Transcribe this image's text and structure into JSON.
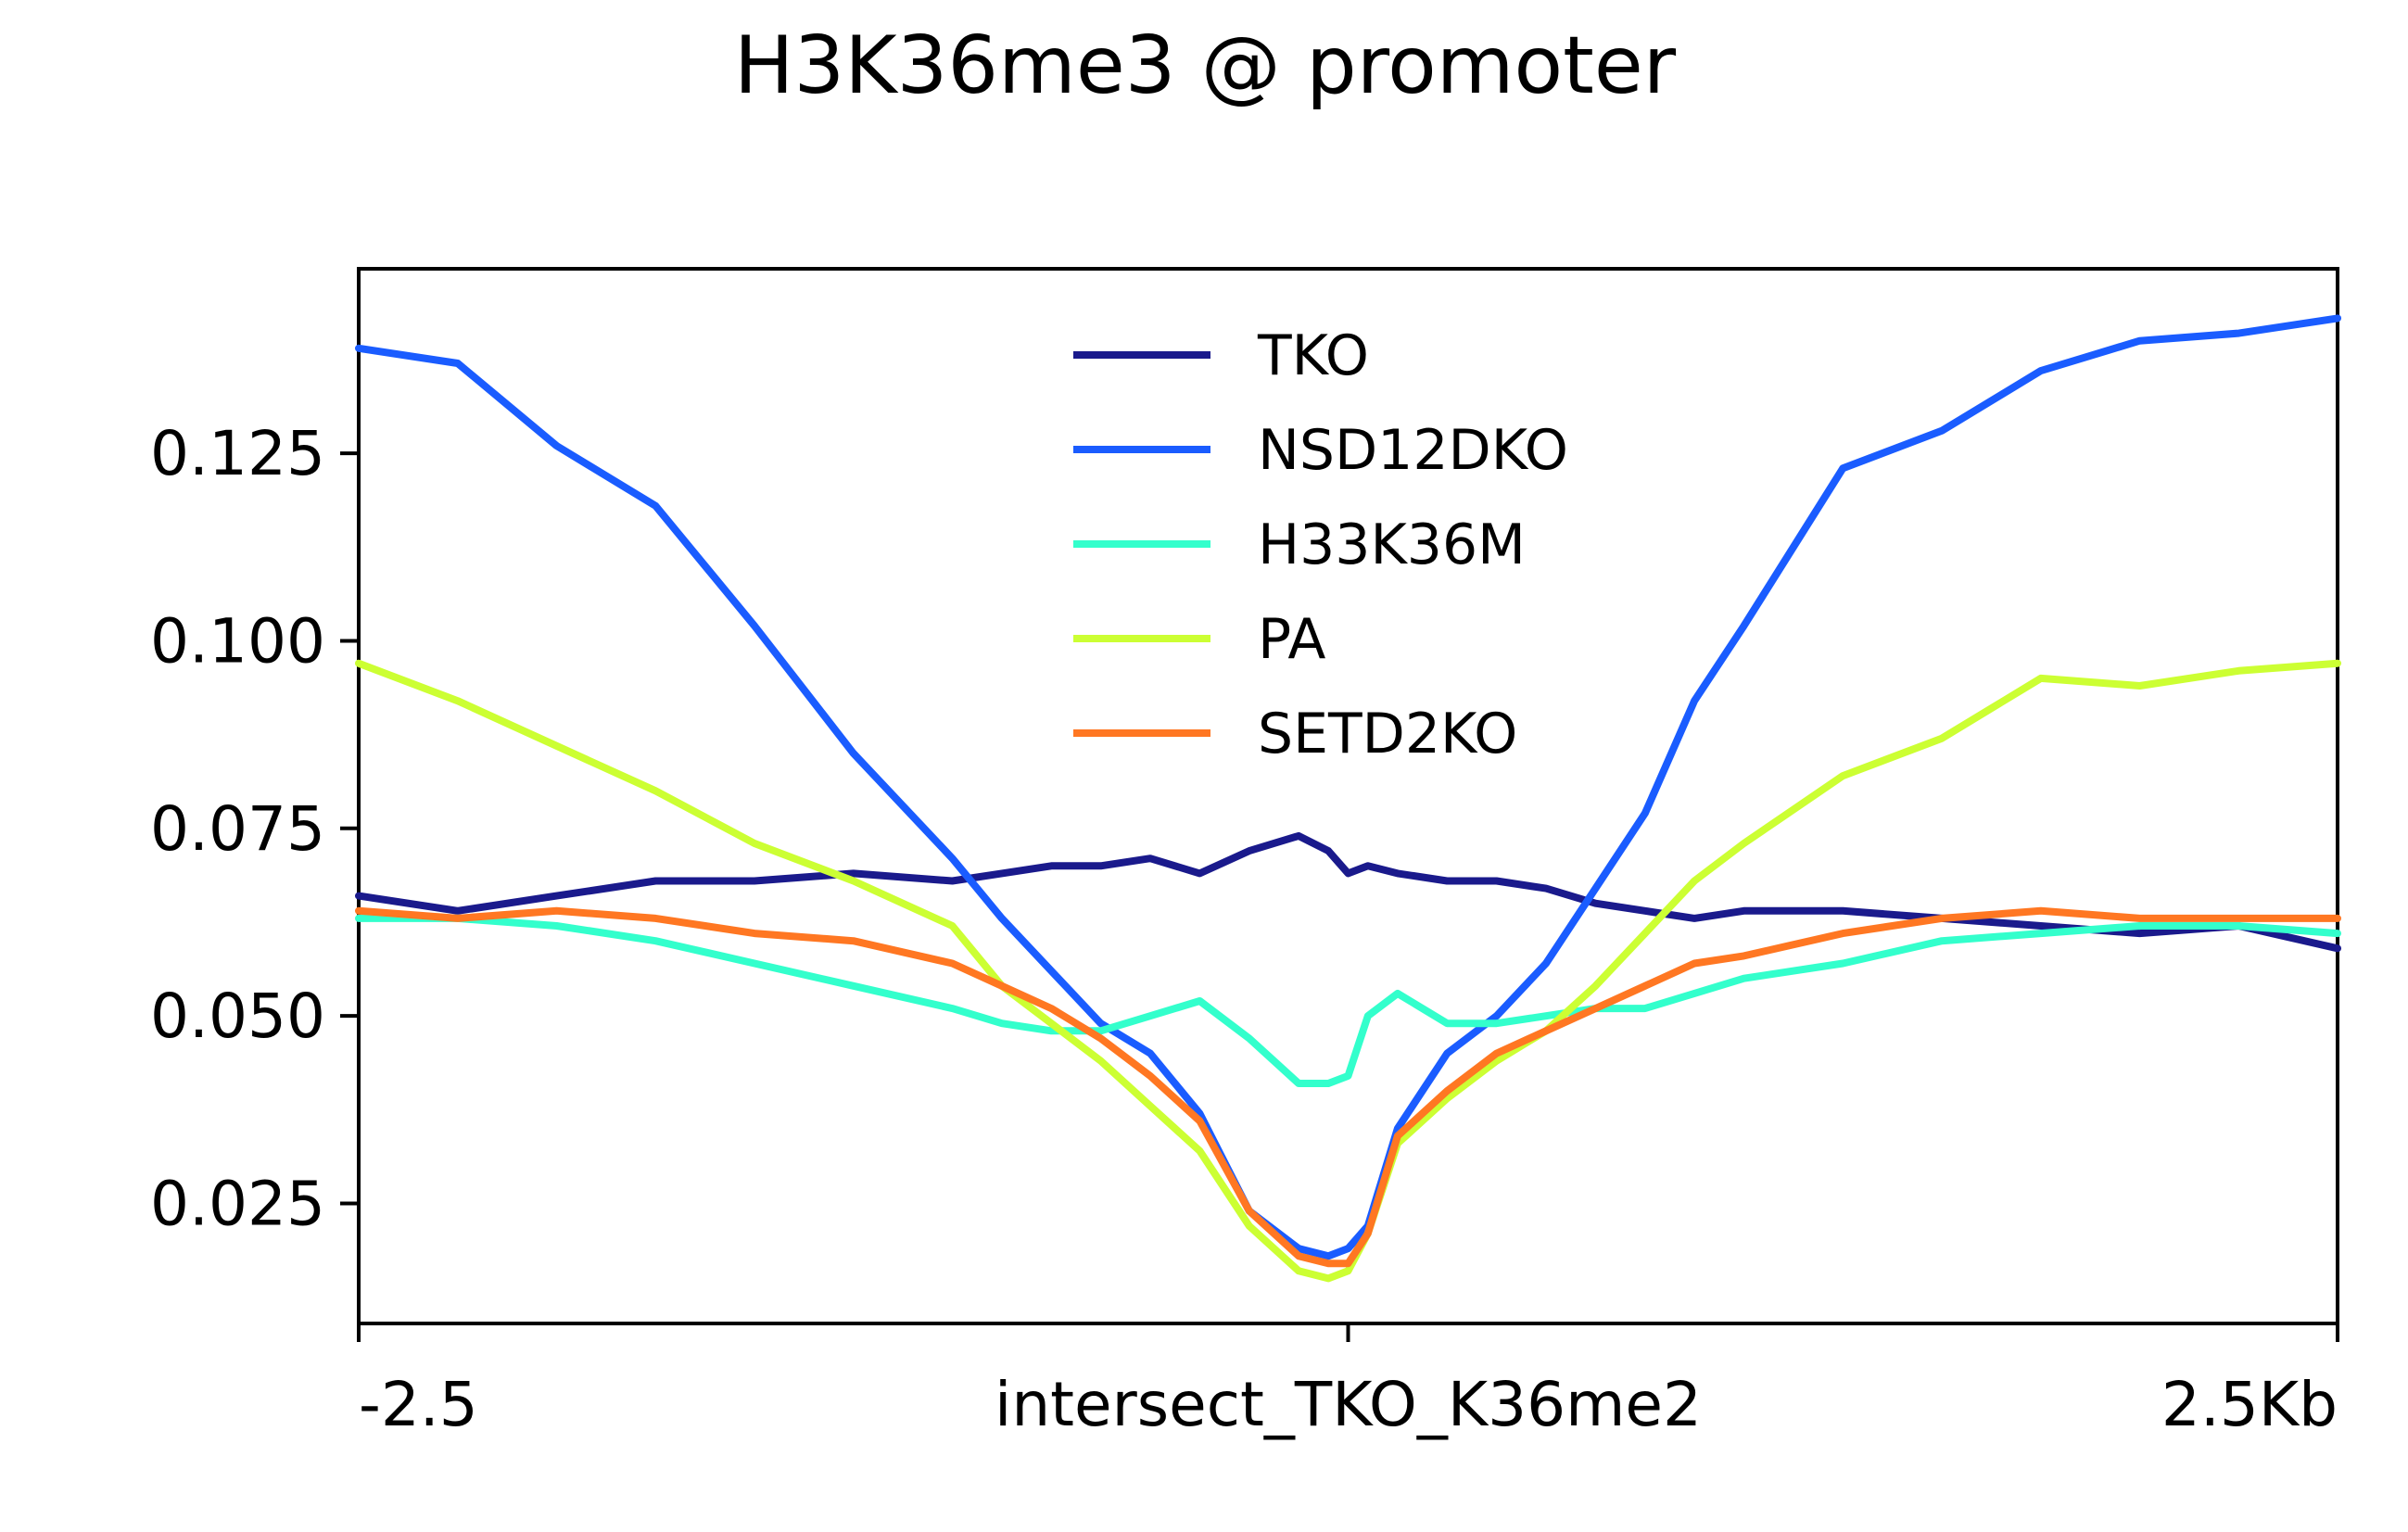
{
  "chart_data": {
    "type": "line",
    "title": "H3K36me3 @ promoter",
    "xlabel": "",
    "ylabel": "",
    "x_ticks": [
      {
        "x": -2.5,
        "label": "-2.5"
      },
      {
        "x": 0,
        "label": "intersect_TKO_K36me2"
      },
      {
        "x": 2.5,
        "label": "2.5Kb"
      }
    ],
    "y_ticks": [
      {
        "y": 0.025,
        "label": "0.025"
      },
      {
        "y": 0.05,
        "label": "0.050"
      },
      {
        "y": 0.075,
        "label": "0.075"
      },
      {
        "y": 0.1,
        "label": "0.100"
      },
      {
        "y": 0.125,
        "label": "0.125"
      }
    ],
    "xlim": [
      -2.5,
      2.5
    ],
    "ylim": [
      0.009,
      0.1496
    ],
    "grid": false,
    "legend_position": "top-center",
    "x": [
      -2.5,
      -2.25,
      -2.0,
      -1.75,
      -1.5,
      -1.25,
      -1.0,
      -0.875,
      -0.75,
      -0.625,
      -0.5,
      -0.375,
      -0.25,
      -0.125,
      -0.05,
      0.0,
      0.05,
      0.125,
      0.25,
      0.375,
      0.5,
      0.625,
      0.75,
      0.875,
      1.0,
      1.25,
      1.5,
      1.75,
      2.0,
      2.25,
      2.5
    ],
    "series": [
      {
        "name": "TKO",
        "color": "#1a1a8c",
        "values": [
          0.066,
          0.064,
          0.066,
          0.068,
          0.068,
          0.069,
          0.068,
          0.069,
          0.07,
          0.07,
          0.071,
          0.069,
          0.072,
          0.074,
          0.072,
          0.069,
          0.07,
          0.069,
          0.068,
          0.068,
          0.067,
          0.065,
          0.064,
          0.063,
          0.064,
          0.064,
          0.063,
          0.062,
          0.061,
          0.062,
          0.059
        ]
      },
      {
        "name": "NSD12DKO",
        "color": "#1a5cff",
        "values": [
          0.139,
          0.137,
          0.126,
          0.118,
          0.102,
          0.085,
          0.071,
          0.063,
          0.056,
          0.049,
          0.045,
          0.037,
          0.024,
          0.019,
          0.018,
          0.019,
          0.022,
          0.035,
          0.045,
          0.05,
          0.057,
          0.067,
          0.077,
          0.092,
          0.102,
          0.123,
          0.128,
          0.136,
          0.14,
          0.141,
          0.143
        ]
      },
      {
        "name": "H33K36M",
        "color": "#33ffcc",
        "values": [
          0.063,
          0.063,
          0.062,
          0.06,
          0.057,
          0.054,
          0.051,
          0.049,
          0.048,
          0.048,
          0.05,
          0.052,
          0.047,
          0.041,
          0.041,
          0.042,
          0.05,
          0.053,
          0.049,
          0.049,
          0.05,
          0.051,
          0.051,
          0.053,
          0.055,
          0.057,
          0.06,
          0.061,
          0.062,
          0.062,
          0.061
        ]
      },
      {
        "name": "PA",
        "color": "#ccff33",
        "values": [
          0.097,
          0.092,
          0.086,
          0.08,
          0.073,
          0.068,
          0.062,
          0.054,
          0.049,
          0.044,
          0.038,
          0.032,
          0.022,
          0.016,
          0.015,
          0.016,
          0.021,
          0.033,
          0.039,
          0.044,
          0.048,
          0.054,
          0.061,
          0.068,
          0.073,
          0.082,
          0.087,
          0.095,
          0.094,
          0.096,
          0.097
        ]
      },
      {
        "name": "SETD2KO",
        "color": "#ff7722",
        "values": [
          0.064,
          0.063,
          0.064,
          0.063,
          0.061,
          0.06,
          0.057,
          0.054,
          0.051,
          0.047,
          0.042,
          0.036,
          0.024,
          0.018,
          0.017,
          0.017,
          0.021,
          0.034,
          0.04,
          0.045,
          0.048,
          0.051,
          0.054,
          0.057,
          0.058,
          0.061,
          0.063,
          0.064,
          0.063,
          0.063,
          0.063
        ]
      }
    ]
  }
}
